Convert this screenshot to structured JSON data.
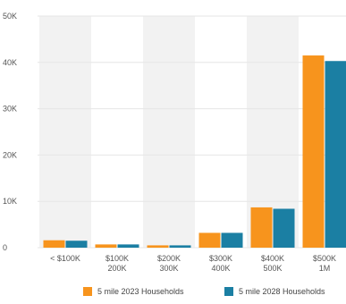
{
  "chart_data": {
    "type": "bar",
    "title": "",
    "xlabel": "",
    "ylabel": "",
    "ylim": [
      0,
      50000
    ],
    "yticks": [
      {
        "value": 0,
        "label": "0"
      },
      {
        "value": 10000,
        "label": "10K"
      },
      {
        "value": 20000,
        "label": "20K"
      },
      {
        "value": 30000,
        "label": "30K"
      },
      {
        "value": 40000,
        "label": "40K"
      },
      {
        "value": 50000,
        "label": "50K"
      }
    ],
    "categories": [
      {
        "line1": "< $100K",
        "line2": ""
      },
      {
        "line1": "$100K",
        "line2": "200K"
      },
      {
        "line1": "$200K",
        "line2": "300K"
      },
      {
        "line1": "$300K",
        "line2": "400K"
      },
      {
        "line1": "$400K",
        "line2": "500K"
      },
      {
        "line1": "$500K",
        "line2": "1M"
      }
    ],
    "series": [
      {
        "name": "5 mile 2023 Households",
        "color": "#F7941D",
        "values": [
          1600,
          700,
          500,
          3200,
          8700,
          41500
        ]
      },
      {
        "name": "5 mile 2028 Households",
        "color": "#1B7FA3",
        "values": [
          1500,
          700,
          500,
          3200,
          8400,
          40300
        ]
      }
    ],
    "band_color": "#F2F2F2",
    "grid": true,
    "grid_color": "#E6E6E6",
    "legend_position": "bottom-right"
  }
}
